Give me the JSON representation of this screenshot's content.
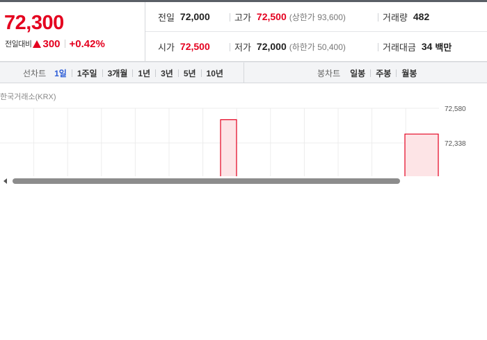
{
  "summary": {
    "current_price": "72,300",
    "change_label": "전일대비",
    "change_amount": "300",
    "change_percent": "+0.42%",
    "stats": {
      "prev_close": {
        "label": "전일",
        "value": "72,000"
      },
      "high": {
        "label": "고가",
        "value": "72,500",
        "limit_text": "(상한가 93,600)"
      },
      "volume": {
        "label": "거래량",
        "value": "482"
      },
      "open": {
        "label": "시가",
        "value": "72,500"
      },
      "low": {
        "label": "저가",
        "value": "72,000",
        "limit_text": "(하한가 50,400)"
      },
      "trade_value": {
        "label": "거래대금",
        "value": "34",
        "unit": "백만"
      }
    }
  },
  "colors": {
    "up": "#e4001f",
    "active_tab": "#2a5bd7"
  },
  "toolbar": {
    "line_chart_label": "선차트",
    "periods": [
      "1일",
      "1주일",
      "3개월",
      "1년",
      "3년",
      "5년",
      "10년"
    ],
    "active_period": "1일",
    "candle_chart_label": "봉차트",
    "candle_periods": [
      "일봉",
      "주봉",
      "월봉"
    ]
  },
  "chart": {
    "exchange_label": "한국거래소(KRX)"
  },
  "chart_data": {
    "type": "area",
    "y_ticks": [
      "72,580",
      "72,338"
    ],
    "ylim": [
      72000,
      72580
    ],
    "series": [
      {
        "segment": 1,
        "values": [
          72500,
          72500
        ]
      },
      {
        "segment": 2,
        "values": [
          72400,
          72400
        ]
      }
    ],
    "grid": true
  }
}
